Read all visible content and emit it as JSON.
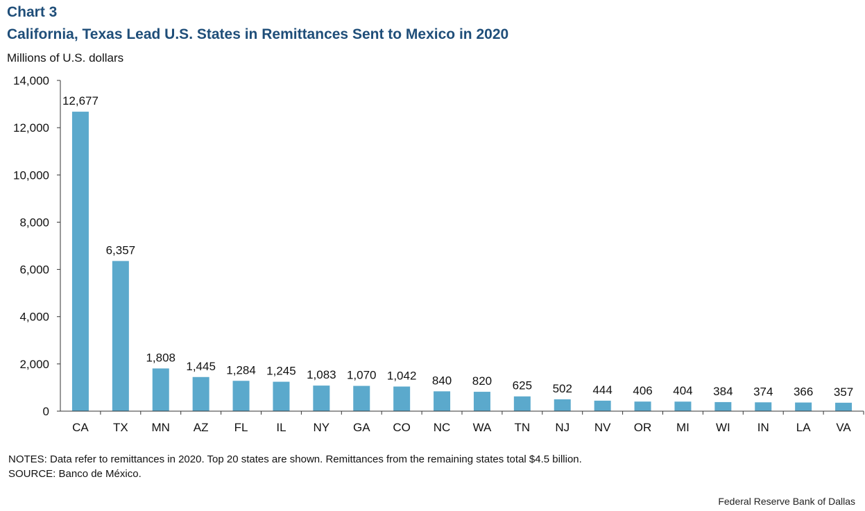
{
  "header": {
    "chart_number": "Chart 3",
    "title": "California, Texas Lead U.S. States in Remittances Sent to Mexico in 2020",
    "y_unit": "Millions of U.S. dollars"
  },
  "notes": {
    "line1": "NOTES: Data refer to remittances in 2020. Top 20 states are shown. Remittances from the remaining states total $4.5 billion.",
    "line2": "SOURCE: Banco de México."
  },
  "footer": {
    "source_org": "Federal Reserve Bank of Dallas"
  },
  "colors": {
    "bar": "#5ba9cc",
    "title": "#1f4e79",
    "axis": "#333333"
  },
  "chart_data": {
    "type": "bar",
    "title": "California, Texas Lead U.S. States in Remittances Sent to Mexico in 2020",
    "ylabel": "Millions of U.S. dollars",
    "xlabel": "",
    "ylim": [
      0,
      14000
    ],
    "yticks": [
      0,
      2000,
      4000,
      6000,
      8000,
      10000,
      12000,
      14000
    ],
    "ytick_labels": [
      "0",
      "2,000",
      "4,000",
      "6,000",
      "8,000",
      "10,000",
      "12,000",
      "14,000"
    ],
    "grid": false,
    "categories": [
      "CA",
      "TX",
      "MN",
      "AZ",
      "FL",
      "IL",
      "NY",
      "GA",
      "CO",
      "NC",
      "WA",
      "TN",
      "NJ",
      "NV",
      "OR",
      "MI",
      "WI",
      "IN",
      "LA",
      "VA"
    ],
    "values": [
      12677,
      6357,
      1808,
      1445,
      1284,
      1245,
      1083,
      1070,
      1042,
      840,
      820,
      625,
      502,
      444,
      406,
      404,
      384,
      374,
      366,
      357
    ],
    "value_labels": [
      "12,677",
      "6,357",
      "1,808",
      "1,445",
      "1,284",
      "1,245",
      "1,083",
      "1,070",
      "1,042",
      "840",
      "820",
      "625",
      "502",
      "444",
      "406",
      "404",
      "384",
      "374",
      "366",
      "357"
    ]
  }
}
